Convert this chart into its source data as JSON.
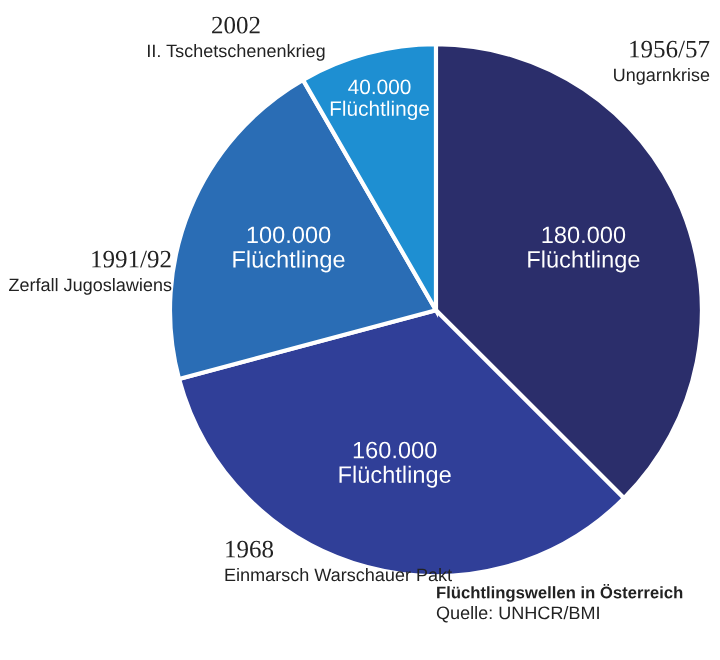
{
  "chart_data": {
    "type": "pie",
    "title": "Flüchtlingswellen in Österreich",
    "categories": [
      "1956/57\nUngarnkrise",
      "1968\nEinmarsch Warschauer Pakt",
      "1991/92\nZerfall Jugoslawiens",
      "2002\nII. Tschetschenenkrieg"
    ],
    "values": [
      180000,
      160000,
      100000,
      40000
    ],
    "value_labels": [
      "180.000\nFlüchtlinge",
      "160.000\nFlüchtlinge",
      "100.000\nFlüchtlinge",
      "40.000\nFlüchtlinge"
    ],
    "colors": [
      "#2b2e6b",
      "#303f98",
      "#2a6db5",
      "#1e8fd2"
    ],
    "annotations": [
      "Quelle: UNHCR/BMI"
    ],
    "legend": false
  }
}
